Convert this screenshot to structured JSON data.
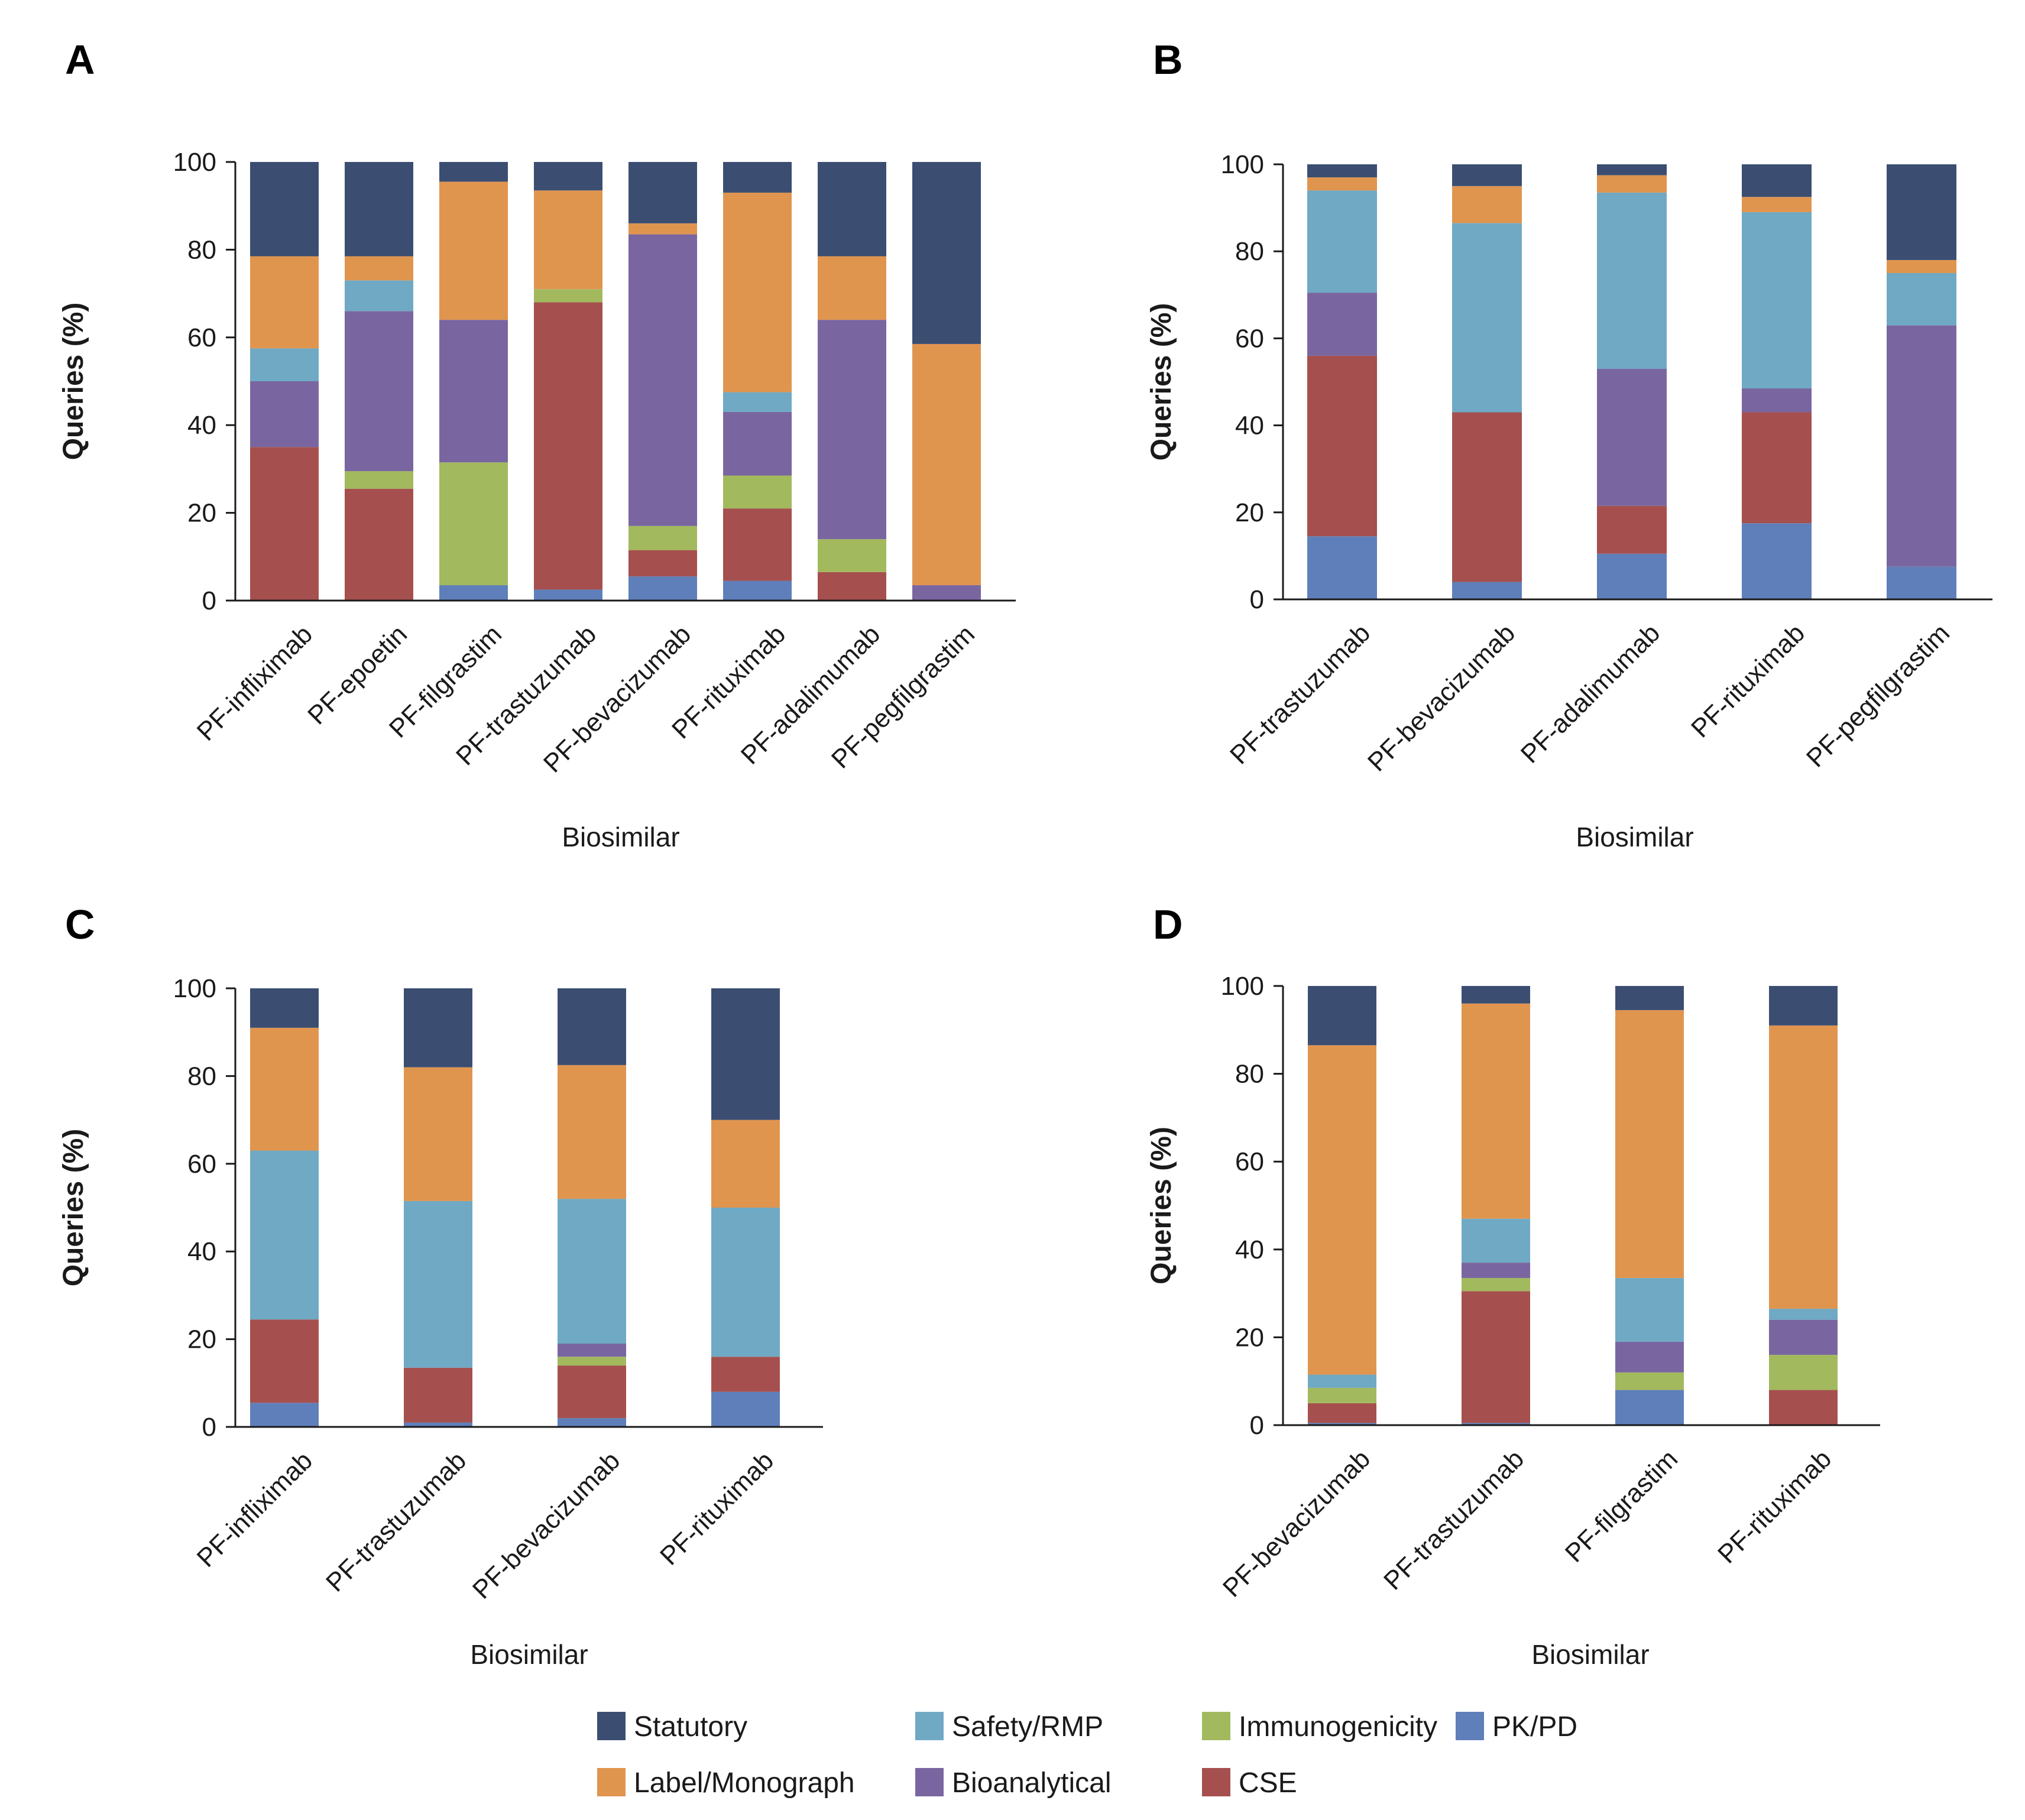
{
  "categories_order": [
    "PK/PD",
    "CSE",
    "Immunogenicity",
    "Bioanalytical",
    "Safety/RMP",
    "Label/Monograph",
    "Statutory"
  ],
  "colors": {
    "Statutory": "#3b4e72",
    "Label/Monograph": "#e0954f",
    "Safety/RMP": "#6fa9c4",
    "Bioanalytical": "#7966a0",
    "Immunogenicity": "#a2b95e",
    "CSE": "#a5504e",
    "PK/PD": "#5f7fba"
  },
  "legend": {
    "row1": [
      "Statutory",
      "Safety/RMP",
      "Immunogenicity",
      "PK/PD"
    ],
    "row2": [
      "Label/Monograph",
      "Bioanalytical",
      "CSE"
    ]
  },
  "chart_data": [
    {
      "panel": "A",
      "type": "bar",
      "stacked": true,
      "xlabel": "Biosimilar",
      "ylabel": "Queries (%)",
      "ylim": [
        0,
        100
      ],
      "yticks": [
        "0",
        "20",
        "40",
        "60",
        "80",
        "100"
      ],
      "categories": [
        "PF-infliximab",
        "PF-epoetin",
        "PF-filgrastim",
        "PF-trastuzumab",
        "PF-bevacizumab",
        "PF-rituximab",
        "PF-adalimumab",
        "PF-pegfilgrastim"
      ],
      "series": [
        {
          "name": "PK/PD",
          "values": [
            0,
            0,
            3.5,
            2.5,
            5.5,
            4.5,
            0,
            0
          ]
        },
        {
          "name": "CSE",
          "values": [
            35,
            25.5,
            0,
            65.5,
            6,
            16.5,
            6.5,
            0
          ]
        },
        {
          "name": "Immunogenicity",
          "values": [
            0,
            4,
            28,
            3,
            5.5,
            7.5,
            7.5,
            0
          ]
        },
        {
          "name": "Bioanalytical",
          "values": [
            15,
            36.5,
            32.5,
            0,
            66.5,
            14.5,
            50,
            3.5
          ]
        },
        {
          "name": "Safety/RMP",
          "values": [
            7.5,
            7,
            0,
            0,
            0,
            4.5,
            0,
            0
          ]
        },
        {
          "name": "Label/Monograph",
          "values": [
            21,
            5.5,
            31.5,
            22.5,
            2.5,
            45.5,
            14.5,
            55
          ]
        },
        {
          "name": "Statutory",
          "values": [
            21.5,
            21.5,
            4.5,
            6.5,
            14,
            7,
            21.5,
            41.5
          ]
        }
      ]
    },
    {
      "panel": "B",
      "type": "bar",
      "stacked": true,
      "xlabel": "Biosimilar",
      "ylabel": "Queries (%)",
      "ylim": [
        0,
        100
      ],
      "yticks": [
        "0",
        "20",
        "40",
        "60",
        "80",
        "100"
      ],
      "categories": [
        "PF-trastuzumab",
        "PF-bevacizumab",
        "PF-adalimumab",
        "PF-rituximab",
        "PF-pegfilgrastim"
      ],
      "series": [
        {
          "name": "PK/PD",
          "values": [
            14.5,
            4,
            10.5,
            17.5,
            7.5
          ]
        },
        {
          "name": "CSE",
          "values": [
            41.5,
            39,
            11,
            25.5,
            0
          ]
        },
        {
          "name": "Immunogenicity",
          "values": [
            0,
            0,
            0,
            0,
            0
          ]
        },
        {
          "name": "Bioanalytical",
          "values": [
            14.5,
            0,
            31.5,
            5.5,
            55.5
          ]
        },
        {
          "name": "Safety/RMP",
          "values": [
            23.5,
            43.5,
            40.5,
            40.5,
            12
          ]
        },
        {
          "name": "Label/Monograph",
          "values": [
            3,
            8.5,
            4,
            3.5,
            3
          ]
        },
        {
          "name": "Statutory",
          "values": [
            3,
            5,
            2.5,
            7.5,
            22
          ]
        }
      ]
    },
    {
      "panel": "C",
      "type": "bar",
      "stacked": true,
      "xlabel": "Biosimilar",
      "ylabel": "Queries (%)",
      "ylim": [
        0,
        100
      ],
      "yticks": [
        "0",
        "20",
        "40",
        "60",
        "80",
        "100"
      ],
      "categories": [
        "PF-infliximab",
        "PF-trastuzumab",
        "PF-bevacizumab",
        "PF-rituximab"
      ],
      "series": [
        {
          "name": "PK/PD",
          "values": [
            5.5,
            1,
            2,
            8
          ]
        },
        {
          "name": "CSE",
          "values": [
            19,
            12.5,
            12,
            8
          ]
        },
        {
          "name": "Immunogenicity",
          "values": [
            0,
            0,
            2,
            0
          ]
        },
        {
          "name": "Bioanalytical",
          "values": [
            0,
            0,
            3,
            0
          ]
        },
        {
          "name": "Safety/RMP",
          "values": [
            38.5,
            38,
            33,
            34
          ]
        },
        {
          "name": "Label/Monograph",
          "values": [
            28,
            30.5,
            30.5,
            20
          ]
        },
        {
          "name": "Statutory",
          "values": [
            9,
            18,
            17.5,
            30
          ]
        }
      ]
    },
    {
      "panel": "D",
      "type": "bar",
      "stacked": true,
      "xlabel": "Biosimilar",
      "ylabel": "Queries (%)",
      "ylim": [
        0,
        100
      ],
      "yticks": [
        "0",
        "20",
        "40",
        "60",
        "80",
        "100"
      ],
      "categories": [
        "PF-bevacizumab",
        "PF-trastuzumab",
        "PF-filgrastim",
        "PF-rituximab"
      ],
      "series": [
        {
          "name": "PK/PD",
          "values": [
            0.5,
            0.5,
            8,
            0
          ]
        },
        {
          "name": "CSE",
          "values": [
            4.5,
            30,
            0,
            8
          ]
        },
        {
          "name": "Immunogenicity",
          "values": [
            3.5,
            3,
            4,
            8
          ]
        },
        {
          "name": "Bioanalytical",
          "values": [
            0,
            3.5,
            7,
            8
          ]
        },
        {
          "name": "Safety/RMP",
          "values": [
            3,
            10,
            14.5,
            2.5
          ]
        },
        {
          "name": "Label/Monograph",
          "values": [
            75,
            49,
            61,
            64.5
          ]
        },
        {
          "name": "Statutory",
          "values": [
            13.5,
            4,
            5.5,
            9
          ]
        }
      ]
    }
  ]
}
